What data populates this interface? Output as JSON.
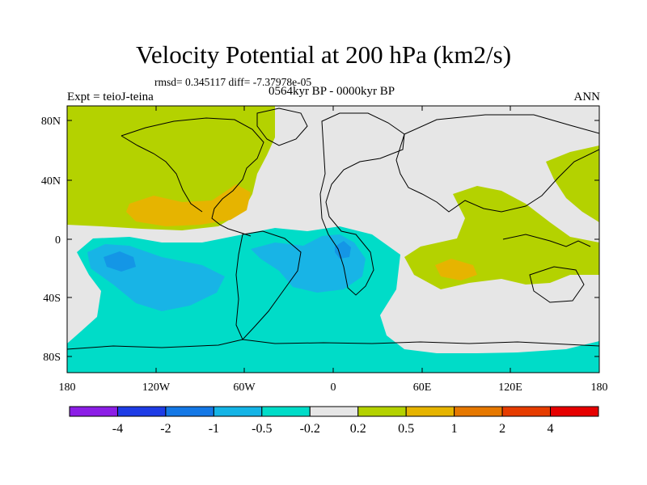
{
  "title": "Velocity Potential at 200 hPa (km2/s)",
  "stats_line": "rmsd= 0.345117 diff= -7.37978e-05",
  "period": "0564kyr BP - 0000kyr BP",
  "experiment": "Expt = teioJ-teina",
  "season": "ANN",
  "map": {
    "lat_labels": [
      "80N",
      "40N",
      "0",
      "40S",
      "80S"
    ],
    "lon_labels": [
      "180",
      "120W",
      "60W",
      "0",
      "60E",
      "120E",
      "180"
    ],
    "colors": {
      "ocean_land_bg": "#e6e6e6",
      "c_m1_to_m05": "#18b4e6",
      "c_m05_to_m02": "#00dcc8",
      "c_m2_to_m1": "#1496e6",
      "c_02_to_05": "#b4d200",
      "c_05_to_1": "#e6b400",
      "coast": "#000000"
    }
  },
  "colorbar": {
    "labels": [
      "-4",
      "-2",
      "-1",
      "-0.5",
      "-0.2",
      "0.2",
      "0.5",
      "1",
      "2",
      "4"
    ],
    "colors": [
      "#8c1ee6",
      "#1e3ce6",
      "#1478e6",
      "#14b4e6",
      "#00dcc8",
      "#e6e6e6",
      "#b4d200",
      "#e6b400",
      "#e67800",
      "#e63c00",
      "#e60000"
    ]
  }
}
